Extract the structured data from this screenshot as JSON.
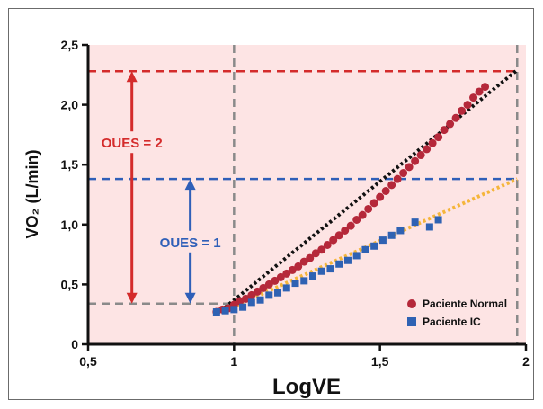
{
  "chart_data": {
    "type": "scatter",
    "xlabel": "LogVE",
    "ylabel": "VO₂ (L/min)",
    "xlim": [
      0.5,
      2
    ],
    "ylim": [
      0,
      2.5
    ],
    "x_ticks": [
      "0,5",
      "1",
      "1,5",
      "2"
    ],
    "y_ticks": [
      "0",
      "0,5",
      "1,0",
      "1,5",
      "2,0",
      "2,5"
    ],
    "grid": false,
    "legend_position": "bottom-right",
    "colors": {
      "background": "#fde4e4",
      "normal": "#b5283a",
      "ic": "#2f62b3",
      "normal_fit": "#111111",
      "ic_fit": "#f5b53a",
      "ref_high": "#d42b2b",
      "ref_mid": "#2f5fb8",
      "ref_gray": "#8a8a8a"
    },
    "series": [
      {
        "name": "Paciente Normal",
        "marker": "circle",
        "x": [
          0.94,
          0.96,
          0.98,
          1.0,
          1.02,
          1.04,
          1.06,
          1.08,
          1.1,
          1.12,
          1.14,
          1.16,
          1.18,
          1.2,
          1.22,
          1.24,
          1.26,
          1.28,
          1.3,
          1.32,
          1.34,
          1.36,
          1.38,
          1.4,
          1.42,
          1.44,
          1.46,
          1.48,
          1.5,
          1.52,
          1.54,
          1.56,
          1.58,
          1.6,
          1.62,
          1.64,
          1.66,
          1.68,
          1.7,
          1.72,
          1.74,
          1.76,
          1.78,
          1.8,
          1.82,
          1.84,
          1.86
        ],
        "values": [
          0.27,
          0.29,
          0.3,
          0.33,
          0.36,
          0.38,
          0.41,
          0.44,
          0.47,
          0.5,
          0.53,
          0.56,
          0.59,
          0.62,
          0.65,
          0.69,
          0.72,
          0.76,
          0.79,
          0.83,
          0.87,
          0.91,
          0.95,
          0.99,
          1.04,
          1.08,
          1.13,
          1.18,
          1.23,
          1.28,
          1.33,
          1.38,
          1.43,
          1.48,
          1.53,
          1.58,
          1.63,
          1.68,
          1.73,
          1.79,
          1.84,
          1.89,
          1.95,
          2.0,
          2.06,
          2.11,
          2.15
        ]
      },
      {
        "name": "Paciente IC",
        "marker": "square",
        "x": [
          0.94,
          0.97,
          1.0,
          1.03,
          1.06,
          1.09,
          1.12,
          1.15,
          1.18,
          1.21,
          1.24,
          1.27,
          1.3,
          1.33,
          1.36,
          1.39,
          1.42,
          1.45,
          1.48,
          1.51,
          1.54,
          1.57,
          1.62,
          1.67,
          1.7
        ],
        "values": [
          0.27,
          0.28,
          0.29,
          0.31,
          0.35,
          0.37,
          0.41,
          0.43,
          0.47,
          0.51,
          0.53,
          0.57,
          0.61,
          0.63,
          0.67,
          0.7,
          0.74,
          0.79,
          0.82,
          0.87,
          0.91,
          0.95,
          1.02,
          0.98,
          1.04
        ]
      }
    ],
    "fit_lines": [
      {
        "series": "Paciente Normal",
        "x": [
          0.94,
          1.97
        ],
        "y": [
          0.25,
          2.29
        ]
      },
      {
        "series": "Paciente IC",
        "x": [
          0.94,
          1.97
        ],
        "y": [
          0.25,
          1.38
        ]
      }
    ],
    "reference_lines": {
      "vertical": [
        1.0,
        1.97
      ],
      "horizontal": [
        {
          "y": 0.34,
          "color": "#8a8a8a",
          "x_to": 1.0
        },
        {
          "y": 1.38,
          "color": "#2f5fb8",
          "x_to": 1.97
        },
        {
          "y": 2.28,
          "color": "#d42b2b",
          "x_to": 1.97
        }
      ]
    },
    "annotations": [
      {
        "text": "OUES = 2",
        "color": "#d42b2b",
        "x": 0.65,
        "y_from": 0.34,
        "y_to": 2.28
      },
      {
        "text": "OUES = 1",
        "color": "#2f5fb8",
        "x": 0.85,
        "y_from": 0.34,
        "y_to": 1.38
      }
    ]
  }
}
